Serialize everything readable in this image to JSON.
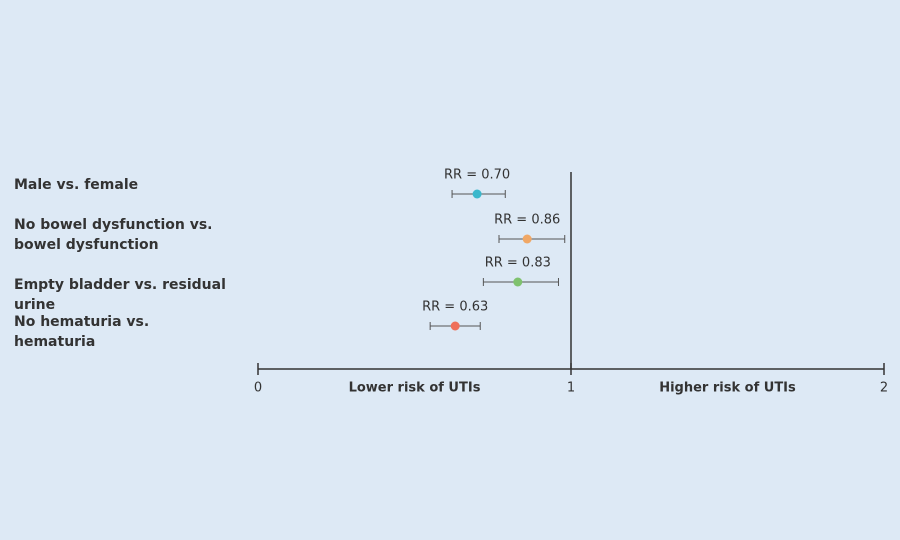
{
  "chart_data": {
    "type": "forest",
    "categories": [
      "Male vs. female",
      "No bowel dysfunction vs.\nbowel dysfunction",
      "Empty bladder vs. residual urine",
      "No hematuria vs.\nhematuria"
    ],
    "values": [
      0.7,
      0.86,
      0.83,
      0.63
    ],
    "value_labels": [
      "RR = 0.70",
      "RR = 0.86",
      "RR = 0.83",
      "RR = 0.63"
    ],
    "lower": [
      0.62,
      0.77,
      0.72,
      0.55
    ],
    "upper": [
      0.79,
      0.98,
      0.96,
      0.71
    ],
    "colors": [
      "#3bb8cc",
      "#f0a765",
      "#7fc26e",
      "#ef6f5a"
    ],
    "xlim": [
      0,
      2
    ],
    "xticks": [
      0,
      1,
      2
    ],
    "reference_line": 1,
    "annotations": [
      "Lower risk of UTIs",
      "Higher risk of UTIs"
    ]
  }
}
